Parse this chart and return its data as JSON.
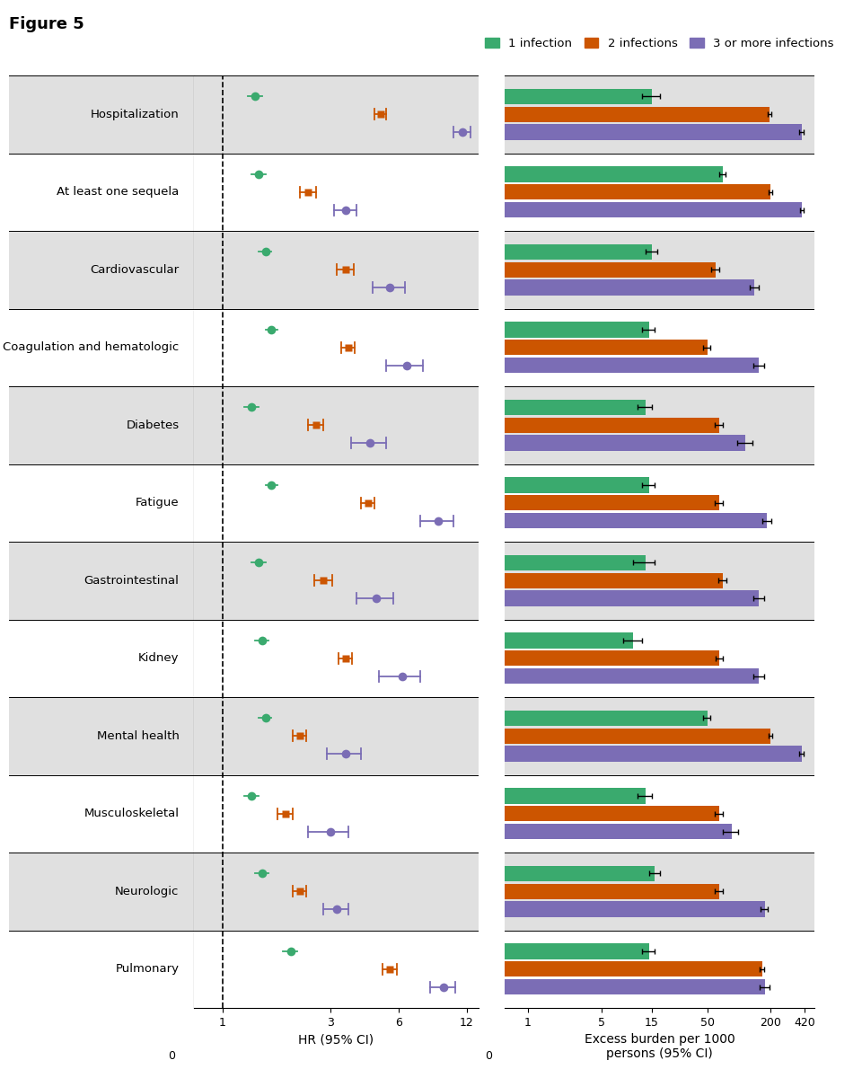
{
  "categories": [
    "Hospitalization",
    "At least one sequela",
    "Cardiovascular",
    "Coagulation and hematologic",
    "Diabetes",
    "Fatigue",
    "Gastrointestinal",
    "Kidney",
    "Mental health",
    "Musculoskeletal",
    "Neurologic",
    "Pulmonary"
  ],
  "hr": {
    "inf1": [
      1.4,
      1.45,
      1.55,
      1.65,
      1.35,
      1.65,
      1.45,
      1.5,
      1.55,
      1.35,
      1.5,
      2.0
    ],
    "inf2": [
      5.0,
      2.4,
      3.5,
      3.6,
      2.6,
      4.4,
      2.8,
      3.5,
      2.2,
      1.9,
      2.2,
      5.5
    ],
    "inf3": [
      11.5,
      3.5,
      5.5,
      6.5,
      4.5,
      9.0,
      4.8,
      6.2,
      3.5,
      3.0,
      3.2,
      9.5
    ]
  },
  "hr_ci": {
    "inf1_lo": [
      0.1,
      0.1,
      0.1,
      0.1,
      0.1,
      0.1,
      0.1,
      0.1,
      0.1,
      0.1,
      0.1,
      0.15
    ],
    "inf1_hi": [
      0.1,
      0.1,
      0.1,
      0.1,
      0.1,
      0.1,
      0.1,
      0.1,
      0.1,
      0.1,
      0.1,
      0.15
    ],
    "inf2_lo": [
      0.3,
      0.2,
      0.3,
      0.25,
      0.2,
      0.3,
      0.25,
      0.25,
      0.15,
      0.15,
      0.15,
      0.4
    ],
    "inf2_hi": [
      0.3,
      0.2,
      0.3,
      0.25,
      0.2,
      0.3,
      0.25,
      0.25,
      0.15,
      0.15,
      0.15,
      0.4
    ],
    "inf3_lo": [
      1.0,
      0.4,
      0.9,
      1.2,
      0.8,
      1.5,
      0.9,
      1.3,
      0.6,
      0.6,
      0.4,
      1.2
    ],
    "inf3_hi": [
      1.0,
      0.4,
      0.9,
      1.2,
      0.8,
      1.5,
      0.9,
      1.3,
      0.6,
      0.6,
      0.4,
      1.2
    ]
  },
  "burden": {
    "inf1": [
      15,
      70,
      15,
      14,
      13,
      14,
      13,
      10,
      50,
      13,
      16,
      14
    ],
    "inf2": [
      195,
      200,
      60,
      50,
      65,
      65,
      70,
      65,
      200,
      65,
      65,
      165
    ],
    "inf3": [
      390,
      395,
      140,
      155,
      115,
      185,
      155,
      155,
      390,
      85,
      175,
      175
    ]
  },
  "burden_ci": {
    "inf1_lo": [
      3,
      5,
      2,
      2,
      2,
      2,
      3,
      2,
      4,
      2,
      2,
      2
    ],
    "inf1_hi": [
      3,
      5,
      2,
      2,
      2,
      2,
      3,
      2,
      4,
      2,
      2,
      2
    ],
    "inf2_lo": [
      8,
      8,
      5,
      4,
      6,
      6,
      6,
      5,
      8,
      6,
      6,
      8
    ],
    "inf2_hi": [
      8,
      8,
      5,
      4,
      6,
      6,
      6,
      5,
      8,
      6,
      6,
      8
    ],
    "inf3_lo": [
      18,
      18,
      14,
      18,
      18,
      18,
      18,
      18,
      18,
      14,
      14,
      18
    ],
    "inf3_hi": [
      18,
      18,
      14,
      18,
      18,
      18,
      18,
      18,
      18,
      14,
      14,
      18
    ]
  },
  "colors": {
    "inf1": "#3aaa6e",
    "inf2": "#cc5500",
    "inf3": "#7b6db5"
  },
  "bg_color_odd": "#e0e0e0",
  "bg_color_even": "#ffffff",
  "title": "Figure 5",
  "legend_labels": [
    "1 infection",
    "2 infections",
    "3 or more infections"
  ]
}
